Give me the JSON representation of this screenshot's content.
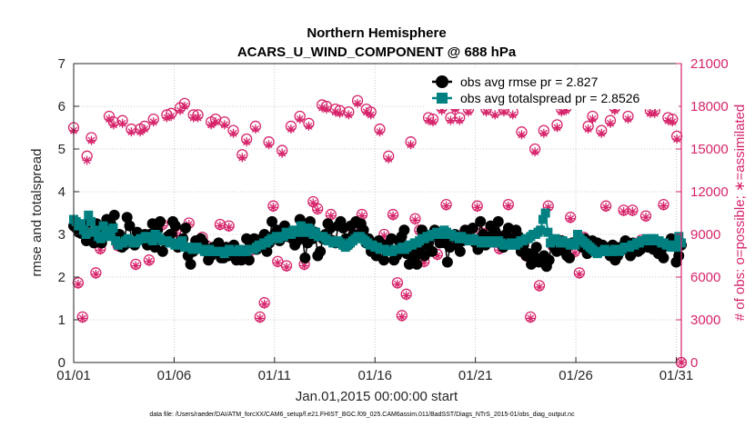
{
  "chart_data": {
    "type": "line",
    "title": "Northern Hemisphere",
    "subtitle": "ACARS_U_WIND_COMPONENT @ 688 hPa",
    "xlabel": "Jan.01,2015 00:00:00 start",
    "ylabel": "rmse and totalspread",
    "ylabel_right": "# of obs: o=possible; ∗=assimilated",
    "footnote": "data file: /Users/raeder/DAI/ATM_forcXX/CAM6_setup/f.e21.FHIST_BGC.f09_025.CAM6assim.011/BadSST/Diags_NTrS_2015-01/obs_diag_output.nc",
    "x_tick_labels": [
      "01/01",
      "01/06",
      "01/11",
      "01/16",
      "01/21",
      "01/26",
      "01/31"
    ],
    "x_tick_days": [
      1,
      6,
      11,
      16,
      21,
      26,
      31
    ],
    "xlim": [
      1,
      31.25
    ],
    "ylim": [
      0,
      7
    ],
    "y_ticks": [
      0,
      1,
      2,
      3,
      4,
      5,
      6,
      7
    ],
    "ylim_right": [
      0,
      21000
    ],
    "y_ticks_right": [
      0,
      3000,
      6000,
      9000,
      12000,
      15000,
      18000,
      21000
    ],
    "grid": true,
    "legend_position": "top-right",
    "colors": {
      "rmse": "#000000",
      "spread": "#008080",
      "obs": "#d6246b",
      "axis_right": "#d6246b"
    },
    "series": [
      {
        "name": "obs avg rmse pr = 2.827",
        "values": [
          3.2,
          3.15,
          3.05,
          3.02,
          3.05,
          2.85,
          3.3,
          2.95,
          2.8,
          3.25,
          3.1,
          2.8,
          3.0,
          3.35,
          3.1,
          3.2,
          3.45,
          2.9,
          3.0,
          2.7,
          2.75,
          3.4,
          3.2,
          2.8,
          2.75,
          3.05,
          2.9,
          2.95,
          3.0,
          2.75,
          3.0,
          3.25,
          2.7,
          3.1,
          3.3,
          2.6,
          2.85,
          2.95,
          3.0,
          3.3,
          3.2,
          2.7,
          2.8,
          2.9,
          3.15,
          2.5,
          2.3,
          2.6,
          2.85,
          2.75,
          2.9,
          2.8,
          2.6,
          2.4,
          2.5,
          2.7,
          2.7,
          2.8,
          2.45,
          2.45,
          2.7,
          2.5,
          2.55,
          2.75,
          2.4,
          2.6,
          2.4,
          2.6,
          2.9,
          2.4,
          2.75,
          2.9,
          2.65,
          2.85,
          2.9,
          3.0,
          2.6,
          2.8,
          3.3,
          3.0,
          3.1,
          2.85,
          3.1,
          3.2,
          2.95,
          3.0,
          2.9,
          2.75,
          2.85,
          3.35,
          2.95,
          2.45,
          2.8,
          3.3,
          2.9,
          3.05,
          2.5,
          2.6,
          2.9,
          3.0,
          3.25,
          3.15,
          2.85,
          2.8,
          3.2,
          3.3,
          3.15,
          2.9,
          2.75,
          3.2,
          3.0,
          3.3,
          2.95,
          3.25,
          3.1,
          2.8,
          2.9,
          2.6,
          2.75,
          2.5,
          2.85,
          2.7,
          2.4,
          2.75,
          2.65,
          2.9,
          2.4,
          2.5,
          2.85,
          2.95,
          3.1,
          2.55,
          2.3,
          2.7,
          2.45,
          2.3,
          2.6,
          3.1,
          2.5,
          2.75,
          2.9,
          2.6,
          3.1,
          3.0,
          2.8,
          3.05,
          2.8,
          2.35,
          2.7,
          2.95,
          3.0,
          2.75,
          2.6,
          2.85,
          3.1,
          2.95,
          2.9,
          3.15,
          2.8,
          2.65,
          3.3,
          3.0,
          2.75,
          2.95,
          3.2,
          2.9,
          3.05,
          3.3,
          2.8,
          2.7,
          3.0,
          3.15,
          2.9,
          2.8,
          3.1,
          2.95,
          2.6,
          2.75,
          2.5,
          2.55,
          2.3,
          2.5,
          2.7,
          2.35,
          2.4,
          2.5,
          2.25,
          2.4,
          2.8,
          2.7,
          2.6,
          2.85,
          2.85,
          2.6,
          2.5,
          2.45,
          2.8,
          2.8,
          2.85,
          2.9,
          2.7,
          2.9,
          2.55,
          2.75,
          2.85,
          2.6,
          2.8,
          2.6,
          2.75,
          2.7,
          2.65,
          2.5,
          2.75,
          2.4,
          2.5,
          2.7,
          2.65,
          2.85,
          2.7,
          2.5,
          2.8,
          2.7,
          2.6,
          2.65,
          2.75,
          2.8,
          2.7,
          2.85,
          2.65,
          2.7,
          2.55,
          2.6,
          2.45,
          2.75,
          2.8,
          2.9,
          2.8,
          2.35,
          2.5,
          2.75
        ]
      },
      {
        "name": "obs avg totalspread pr = 2.8526",
        "values": [
          3.35,
          3.3,
          3.2,
          3.25,
          3.1,
          3.0,
          3.45,
          3.3,
          3.05,
          3.1,
          2.95,
          2.9,
          3.2,
          3.1,
          2.95,
          3.05,
          3.15,
          2.85,
          2.75,
          2.8,
          2.8,
          2.85,
          2.9,
          2.85,
          2.8,
          2.8,
          2.85,
          2.9,
          2.9,
          2.95,
          2.95,
          2.9,
          2.85,
          3.0,
          2.95,
          2.9,
          2.85,
          2.85,
          2.85,
          2.8,
          2.8,
          2.75,
          2.75,
          2.8,
          2.85,
          2.7,
          2.7,
          2.7,
          2.65,
          2.65,
          2.7,
          2.65,
          2.65,
          2.6,
          2.6,
          2.65,
          2.6,
          2.6,
          2.6,
          2.6,
          2.6,
          2.55,
          2.6,
          2.65,
          2.6,
          2.6,
          2.6,
          2.65,
          2.6,
          2.6,
          2.6,
          2.65,
          2.65,
          2.65,
          2.7,
          2.75,
          2.75,
          2.8,
          2.8,
          2.85,
          2.9,
          2.9,
          2.95,
          2.9,
          2.95,
          2.95,
          3.05,
          3.0,
          3.0,
          3.1,
          3.05,
          3.05,
          3.2,
          3.05,
          3.05,
          3.15,
          3.1,
          3.0,
          3.05,
          2.95,
          2.95,
          2.95,
          2.9,
          2.85,
          2.85,
          2.8,
          2.8,
          2.85,
          2.8,
          2.75,
          2.7,
          2.75,
          2.8,
          2.85,
          2.9,
          2.95,
          2.95,
          2.9,
          2.85,
          2.8,
          2.75,
          2.75,
          2.7,
          2.7,
          2.65,
          2.65,
          2.65,
          2.6,
          2.6,
          2.6,
          2.65,
          2.65,
          2.65,
          2.7,
          2.65,
          2.7,
          2.75,
          2.75,
          2.8,
          2.8,
          2.85,
          2.9,
          2.9,
          2.95,
          2.95,
          3.0,
          3.0,
          3.05,
          3.0,
          3.0,
          3.1,
          3.05,
          3.0,
          3.0,
          2.95,
          2.95,
          2.9,
          2.95,
          2.9,
          2.9,
          2.85,
          2.85,
          2.9,
          2.85,
          2.85,
          2.8,
          2.85,
          2.85,
          2.8,
          2.85,
          2.8,
          2.8,
          2.85,
          2.8,
          2.75,
          2.75,
          2.75,
          2.8,
          2.75,
          2.75,
          2.8,
          2.85,
          2.85,
          2.9,
          2.9,
          2.95,
          3.0,
          3.0,
          3.05,
          3.1,
          3.35,
          3.5,
          3.05,
          2.8,
          2.85,
          2.9,
          2.85,
          2.8,
          2.85,
          2.8,
          2.8,
          2.75,
          2.8,
          2.75,
          3.0,
          2.9,
          2.85,
          2.8,
          2.75,
          2.7,
          2.65,
          2.6,
          2.55,
          2.6,
          2.6,
          2.65,
          2.6,
          2.6,
          2.6,
          2.65,
          2.65,
          2.6,
          2.65,
          2.7,
          2.7,
          2.7,
          2.75,
          2.75,
          2.8,
          2.8,
          2.85,
          2.85,
          2.9,
          2.85,
          2.9,
          2.9,
          2.85,
          2.85,
          2.8,
          2.8,
          2.75,
          2.75,
          2.7,
          2.75,
          2.7,
          2.95,
          2.8
        ]
      },
      {
        "name": "obs possible",
        "values": [
          16500,
          5600,
          3200,
          14500,
          15800,
          6300,
          8000,
          9200,
          17300,
          16900,
          8200,
          17000,
          8400,
          16400,
          6900,
          16400,
          16600,
          7200,
          17100,
          8600,
          9700,
          17400,
          17500,
          9200,
          17900,
          18200,
          9800,
          17400,
          17400,
          8800,
          8200,
          16900,
          17100,
          9700,
          16900,
          9600,
          16300,
          7500,
          14600,
          15700,
          7900,
          16600,
          3200,
          4200,
          15500,
          11000,
          7100,
          14900,
          6800,
          16600,
          9000,
          17300,
          6900,
          16800,
          11300,
          10800,
          18100,
          18000,
          10400,
          17800,
          17700,
          8200,
          17600,
          9400,
          18400,
          10400,
          17800,
          17600,
          7800,
          16400,
          9000,
          14500,
          10400,
          5600,
          3300,
          4800,
          15500,
          10100,
          9300,
          7100,
          17200,
          17100,
          7600,
          17900,
          11100,
          17200,
          18000,
          17200,
          9100,
          17800,
          8600,
          11000,
          9100,
          17800,
          9400,
          17600,
          8000,
          17800,
          11100,
          17600,
          8500,
          16200,
          7500,
          3200,
          15000,
          5400,
          16300,
          11000,
          8200,
          16700,
          17800,
          17900,
          10200,
          7800,
          6300,
          8800,
          16600,
          17300,
          8100,
          16300,
          11000,
          17000,
          17900,
          18300,
          10700,
          17300,
          10700,
          18500,
          8600,
          10300,
          17700,
          17700,
          8300,
          11100,
          17200,
          17100,
          15900,
          0
        ]
      },
      {
        "name": "obs assimilated",
        "values": [
          16300,
          5500,
          3100,
          14200,
          15600,
          6200,
          7900,
          9100,
          17100,
          16700,
          8100,
          16800,
          8300,
          16200,
          6800,
          16200,
          16400,
          7100,
          16900,
          8500,
          9600,
          17200,
          17300,
          9100,
          17700,
          18000,
          9700,
          17200,
          17200,
          8700,
          8100,
          16700,
          16900,
          9600,
          16700,
          9500,
          16100,
          7400,
          14400,
          15500,
          7800,
          16400,
          3100,
          4100,
          15300,
          10900,
          7000,
          14700,
          6700,
          16400,
          8900,
          17100,
          6800,
          16600,
          11200,
          10700,
          17900,
          17800,
          10300,
          17600,
          17500,
          8100,
          17400,
          9300,
          18200,
          10300,
          17600,
          17400,
          7700,
          16200,
          8900,
          14300,
          10300,
          5500,
          3200,
          4700,
          15300,
          10000,
          9200,
          7000,
          17000,
          16900,
          7500,
          17700,
          11000,
          17000,
          17800,
          17000,
          9000,
          17600,
          8500,
          10900,
          9000,
          17600,
          9300,
          17400,
          7900,
          17600,
          11000,
          17400,
          8400,
          16000,
          7400,
          3100,
          14800,
          5300,
          16100,
          10900,
          8100,
          16500,
          17600,
          17700,
          10100,
          7700,
          6200,
          8700,
          16400,
          17100,
          8000,
          16100,
          10900,
          16800,
          17700,
          18100,
          10600,
          17100,
          10600,
          18300,
          8500,
          10200,
          17500,
          17500,
          8200,
          11000,
          17000,
          16900,
          15700,
          0
        ]
      }
    ]
  }
}
